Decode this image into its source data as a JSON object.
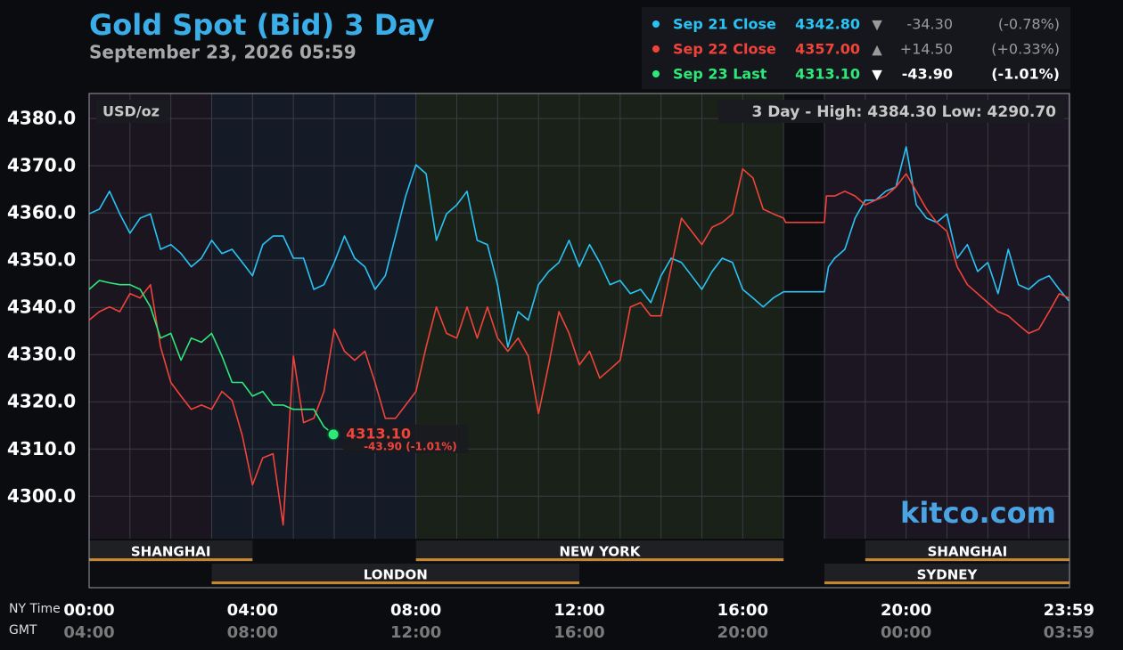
{
  "chart_data": {
    "type": "line",
    "title": "Gold Spot (Bid) 3 Day",
    "subtitle": "September 23, 2026 05:59",
    "unit_label": "USD/oz",
    "range_text": "3 Day - High: 4384.30  Low: 4290.70",
    "brand": "kitco.com",
    "x_axis_label": "NY Time",
    "x2_axis_label": "GMT",
    "xlim": [
      0,
      24
    ],
    "ylim": [
      4291,
      4385.3
    ],
    "yticks": [
      {
        "value": 4300,
        "label": "4300.0"
      },
      {
        "value": 4310,
        "label": "4310.0"
      },
      {
        "value": 4320,
        "label": "4320.0"
      },
      {
        "value": 4330,
        "label": "4330.0"
      },
      {
        "value": 4340,
        "label": "4340.0"
      },
      {
        "value": 4350,
        "label": "4350.0"
      },
      {
        "value": 4360,
        "label": "4360.0"
      },
      {
        "value": 4370,
        "label": "4370.0"
      },
      {
        "value": 4380,
        "label": "4380.0"
      }
    ],
    "xticks": [
      {
        "value": 0,
        "label": "00:00"
      },
      {
        "value": 4,
        "label": "04:00"
      },
      {
        "value": 8,
        "label": "08:00"
      },
      {
        "value": 12,
        "label": "12:00"
      },
      {
        "value": 16,
        "label": "16:00"
      },
      {
        "value": 20,
        "label": "20:00"
      },
      {
        "value": 23.983,
        "label": "23:59"
      }
    ],
    "x2ticks": [
      {
        "value": 0,
        "label": "04:00"
      },
      {
        "value": 4,
        "label": "08:00"
      },
      {
        "value": 8,
        "label": "12:00"
      },
      {
        "value": 12,
        "label": "16:00"
      },
      {
        "value": 16,
        "label": "20:00"
      },
      {
        "value": 20,
        "label": "00:00"
      },
      {
        "value": 23.983,
        "label": "03:59"
      }
    ],
    "minor_xticks": [
      1,
      2,
      3,
      5,
      6,
      7,
      9,
      10,
      11,
      13,
      14,
      15,
      17,
      18,
      19,
      21,
      22,
      23
    ],
    "grid": true,
    "regions": [
      {
        "start": 0,
        "end": 3,
        "color": "#1b1520"
      },
      {
        "start": 3,
        "end": 8,
        "color": "#151a27"
      },
      {
        "start": 8,
        "end": 17,
        "color": "#1a2119"
      },
      {
        "start": 17,
        "end": 18,
        "color": "#0c0d10"
      },
      {
        "start": 18,
        "end": 24,
        "color": "#1c1622"
      }
    ],
    "sessions": [
      {
        "name": "SHANGHAI",
        "start": 0,
        "end": 4,
        "row": 0
      },
      {
        "name": "NEW YORK",
        "start": 8,
        "end": 17,
        "row": 0
      },
      {
        "name": "SHANGHAI",
        "start": 19,
        "end": 24,
        "row": 0
      },
      {
        "name": "LONDON",
        "start": 3,
        "end": 12,
        "row": 1
      },
      {
        "name": "SYDNEY",
        "start": 18,
        "end": 24,
        "row": 1
      }
    ],
    "series": [
      {
        "name": "Sep 21 Close",
        "color": "#29c4f5",
        "price": "4342.80",
        "arrow": "▼",
        "change": "-34.30",
        "percent": "(-0.78%)",
        "x": [
          0,
          0.25,
          0.5,
          0.75,
          1,
          1.25,
          1.5,
          1.75,
          2,
          2.25,
          2.5,
          2.75,
          3,
          3.25,
          3.5,
          3.75,
          4,
          4.25,
          4.5,
          4.75,
          5,
          5.25,
          5.5,
          5.75,
          6,
          6.25,
          6.5,
          6.75,
          7,
          7.25,
          7.5,
          7.75,
          8,
          8.25,
          8.5,
          8.75,
          9,
          9.25,
          9.5,
          9.75,
          10,
          10.25,
          10.5,
          10.75,
          11,
          11.25,
          11.5,
          11.75,
          12,
          12.25,
          12.5,
          12.75,
          13,
          13.25,
          13.5,
          13.75,
          14,
          14.25,
          14.5,
          14.75,
          15,
          15.25,
          15.5,
          15.75,
          16,
          16.25,
          16.5,
          16.75,
          17,
          18,
          18.1,
          18.25,
          18.5,
          18.75,
          19,
          19.25,
          19.5,
          19.75,
          20,
          20.25,
          20.5,
          20.75,
          21,
          21.25,
          21.5,
          21.75,
          22,
          22.25,
          22.5,
          22.75,
          23,
          23.25,
          23.5,
          23.75,
          23.98
        ],
        "values": [
          4359.8,
          4360.8,
          4364.6,
          4359.8,
          4355.7,
          4358.9,
          4359.8,
          4352.3,
          4353.3,
          4351.4,
          4348.6,
          4350.4,
          4354.2,
          4351.4,
          4352.3,
          4349.5,
          4346.7,
          4353.3,
          4355.1,
          4355.1,
          4350.4,
          4350.4,
          4343.8,
          4344.8,
          4349.5,
          4355.1,
          4350.4,
          4348.6,
          4343.8,
          4346.7,
          4355.1,
          4363.6,
          4370.2,
          4368.3,
          4354.2,
          4359.8,
          4361.7,
          4364.6,
          4354.2,
          4353.3,
          4344.8,
          4331.6,
          4339.1,
          4337.3,
          4344.8,
          4347.6,
          4349.5,
          4354.2,
          4348.6,
          4353.3,
          4349.5,
          4344.8,
          4345.7,
          4342.9,
          4343.8,
          4341,
          4346.7,
          4350.4,
          4349.5,
          4346.7,
          4343.8,
          4347.6,
          4350.4,
          4349.5,
          4343.8,
          4342,
          4340.1,
          4342,
          4343.3,
          4343.3,
          4348.6,
          4350.4,
          4352.3,
          4358.9,
          4362.7,
          4362.7,
          4364.6,
          4365.5,
          4374,
          4361.7,
          4358.9,
          4358,
          4359.8,
          4350.4,
          4353.3,
          4347.6,
          4349.5,
          4342.9,
          4352.3,
          4344.8,
          4343.8,
          4345.7,
          4346.7,
          4343.8,
          4341.4
        ]
      },
      {
        "name": "Sep 22 Close",
        "color": "#f0433a",
        "price": "4357.00",
        "arrow": "▲",
        "change": "+14.50",
        "percent": "(+0.33%)",
        "x": [
          0,
          0.25,
          0.5,
          0.75,
          1,
          1.25,
          1.5,
          1.75,
          2,
          2.25,
          2.5,
          2.75,
          3,
          3.25,
          3.5,
          3.75,
          4,
          4.25,
          4.5,
          4.75,
          5,
          5.25,
          5.5,
          5.75,
          6,
          6.25,
          6.5,
          6.75,
          7,
          7.25,
          7.5,
          7.75,
          8,
          8.25,
          8.5,
          8.75,
          9,
          9.25,
          9.5,
          9.75,
          10,
          10.25,
          10.5,
          10.75,
          11,
          11.25,
          11.5,
          11.75,
          12,
          12.25,
          12.5,
          12.75,
          13,
          13.25,
          13.5,
          13.75,
          14,
          14.25,
          14.5,
          14.75,
          15,
          15.25,
          15.5,
          15.75,
          16,
          16.25,
          16.5,
          16.75,
          17,
          17.05,
          18,
          18.05,
          18.25,
          18.5,
          18.75,
          19,
          19.25,
          19.5,
          19.75,
          20,
          20.25,
          20.5,
          20.75,
          21,
          21.25,
          21.5,
          21.75,
          22,
          22.25,
          22.5,
          22.75,
          23,
          23.25,
          23.5,
          23.75,
          23.98
        ],
        "values": [
          4337.3,
          4339.1,
          4340.1,
          4339.1,
          4342.9,
          4342,
          4344.8,
          4331.6,
          4324.1,
          4321.2,
          4318.4,
          4319.3,
          4318.4,
          4322.2,
          4320.3,
          4312.8,
          4302.4,
          4308.1,
          4309,
          4293.9,
          4329.7,
          4315.6,
          4316.5,
          4322.2,
          4335.4,
          4330.7,
          4328.8,
          4330.7,
          4324.1,
          4316.5,
          4316.5,
          4319.3,
          4322.2,
          4331.6,
          4340.1,
          4334.5,
          4333.5,
          4340.1,
          4333.5,
          4340.1,
          4333.5,
          4330.7,
          4333.5,
          4329.7,
          4317.5,
          4327.8,
          4339.1,
          4334.5,
          4327.8,
          4330.7,
          4325,
          4326.9,
          4328.8,
          4340.1,
          4341,
          4338.2,
          4338.2,
          4348.6,
          4358.9,
          4356.1,
          4353.3,
          4357,
          4358,
          4359.8,
          4369.3,
          4367.4,
          4360.8,
          4359.8,
          4358.9,
          4358,
          4358,
          4363.6,
          4363.6,
          4364.6,
          4363.6,
          4361.7,
          4362.7,
          4363.6,
          4365.5,
          4368.3,
          4364.6,
          4360.8,
          4358,
          4356.1,
          4348.6,
          4344.8,
          4342.9,
          4341,
          4339.1,
          4338.2,
          4336.3,
          4334.5,
          4335.4,
          4339.1,
          4342.9,
          4342
        ]
      },
      {
        "name": "Sep 23 Last",
        "color": "#2ee87a",
        "price": "4313.10",
        "arrow": "▼",
        "change": "-43.90",
        "percent": "(-1.01%)",
        "x": [
          0,
          0.25,
          0.5,
          0.75,
          1,
          1.25,
          1.5,
          1.75,
          2,
          2.25,
          2.5,
          2.75,
          3,
          3.25,
          3.5,
          3.75,
          4,
          4.25,
          4.5,
          4.75,
          5,
          5.25,
          5.5,
          5.75,
          5.98
        ],
        "values": [
          4343.8,
          4345.7,
          4345.2,
          4344.8,
          4344.8,
          4343.8,
          4340.1,
          4333.5,
          4334.5,
          4328.8,
          4333.5,
          4332.6,
          4334.5,
          4329.7,
          4324.1,
          4324.1,
          4321.2,
          4322.2,
          4319.3,
          4319.3,
          4318.4,
          4318.4,
          4318.4,
          4314.7,
          4313.1
        ]
      }
    ],
    "last_annotation": {
      "price": "4313.10",
      "change": "-43.90 (-1.01%)",
      "color": "#f0433a"
    }
  }
}
